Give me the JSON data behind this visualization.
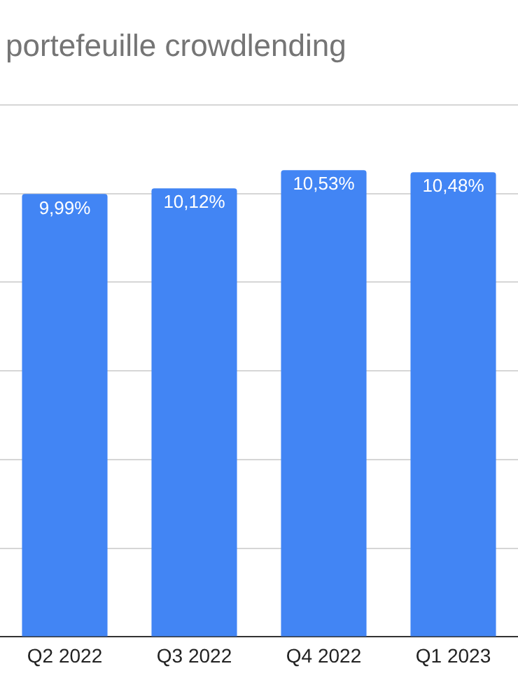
{
  "chart_data": {
    "type": "bar",
    "title": "portefeuille crowdlending",
    "categories": [
      "Q2 2022",
      "Q3 2022",
      "Q4 2022",
      "Q1 2023"
    ],
    "values": [
      9.99,
      10.12,
      10.53,
      10.48
    ],
    "value_labels": [
      "9,99%",
      "10,12%",
      "10,53%",
      "10,48%"
    ],
    "color": "#4285f4",
    "tick_labels": "x",
    "grid": "y",
    "legend": false
  }
}
